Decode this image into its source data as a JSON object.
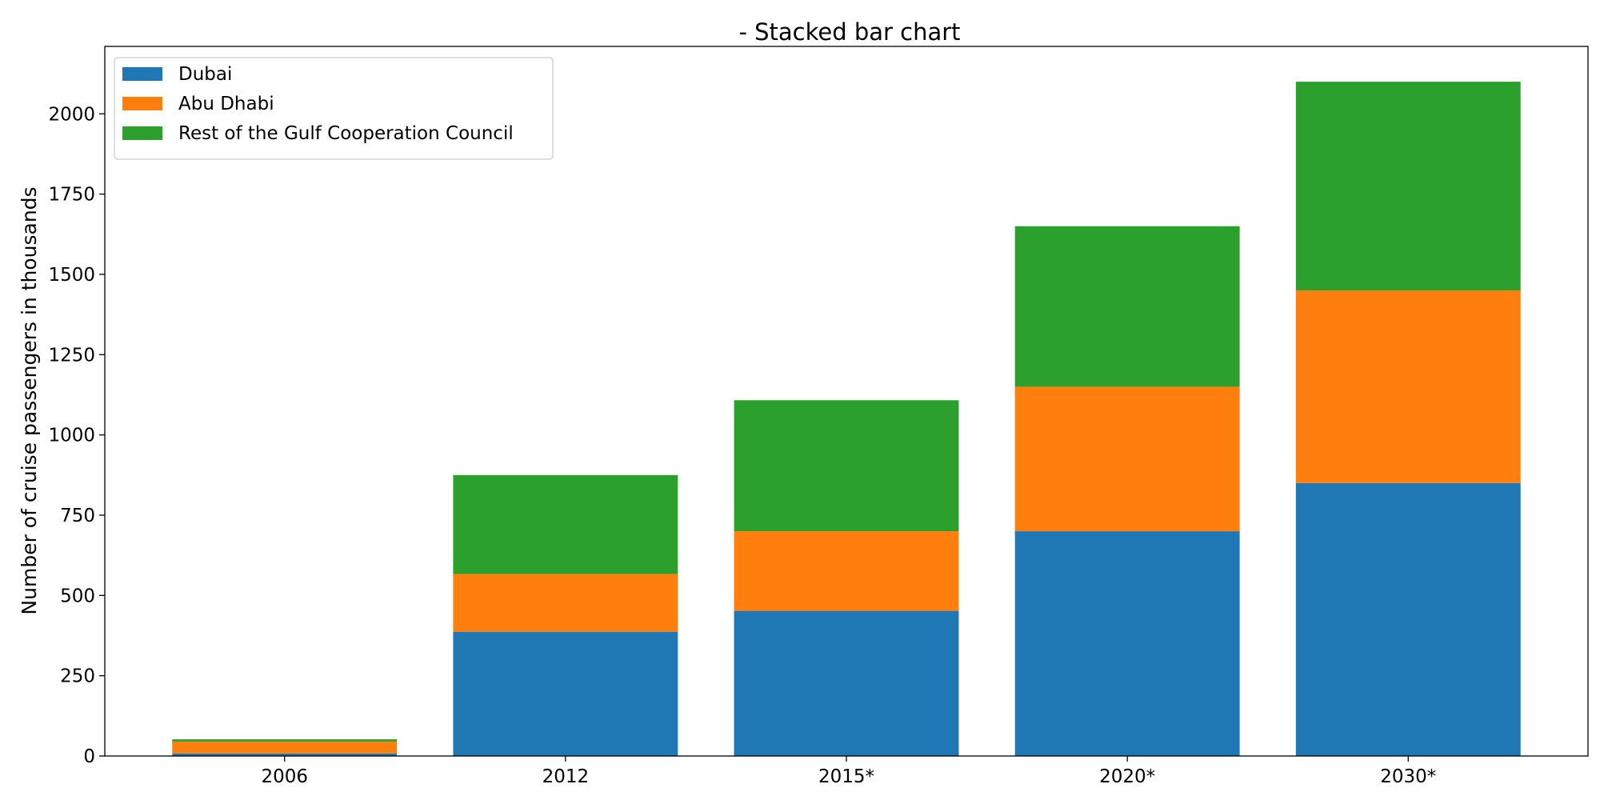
{
  "chart_data": {
    "type": "bar",
    "stacked": true,
    "title": "- Stacked bar chart",
    "xlabel": "",
    "ylabel": "Number of cruise passengers in thousands",
    "categories": [
      "2006",
      "2012",
      "2015*",
      "2020*",
      "2030*"
    ],
    "series": [
      {
        "name": "Dubai",
        "color": "#1f77b4",
        "values": [
          8,
          387,
          452,
          700,
          850
        ]
      },
      {
        "name": "Abu Dhabi",
        "color": "#ff7f0e",
        "values": [
          37,
          180,
          248,
          450,
          600
        ]
      },
      {
        "name": "Rest of the Gulf Cooperation Council",
        "color": "#2ca02c",
        "values": [
          7,
          308,
          408,
          500,
          650
        ]
      }
    ],
    "ylim": [
      0,
      2210
    ],
    "yticks": [
      0,
      250,
      500,
      750,
      1000,
      1250,
      1500,
      1750,
      2000
    ],
    "grid": false,
    "legend_position": "top-left"
  }
}
